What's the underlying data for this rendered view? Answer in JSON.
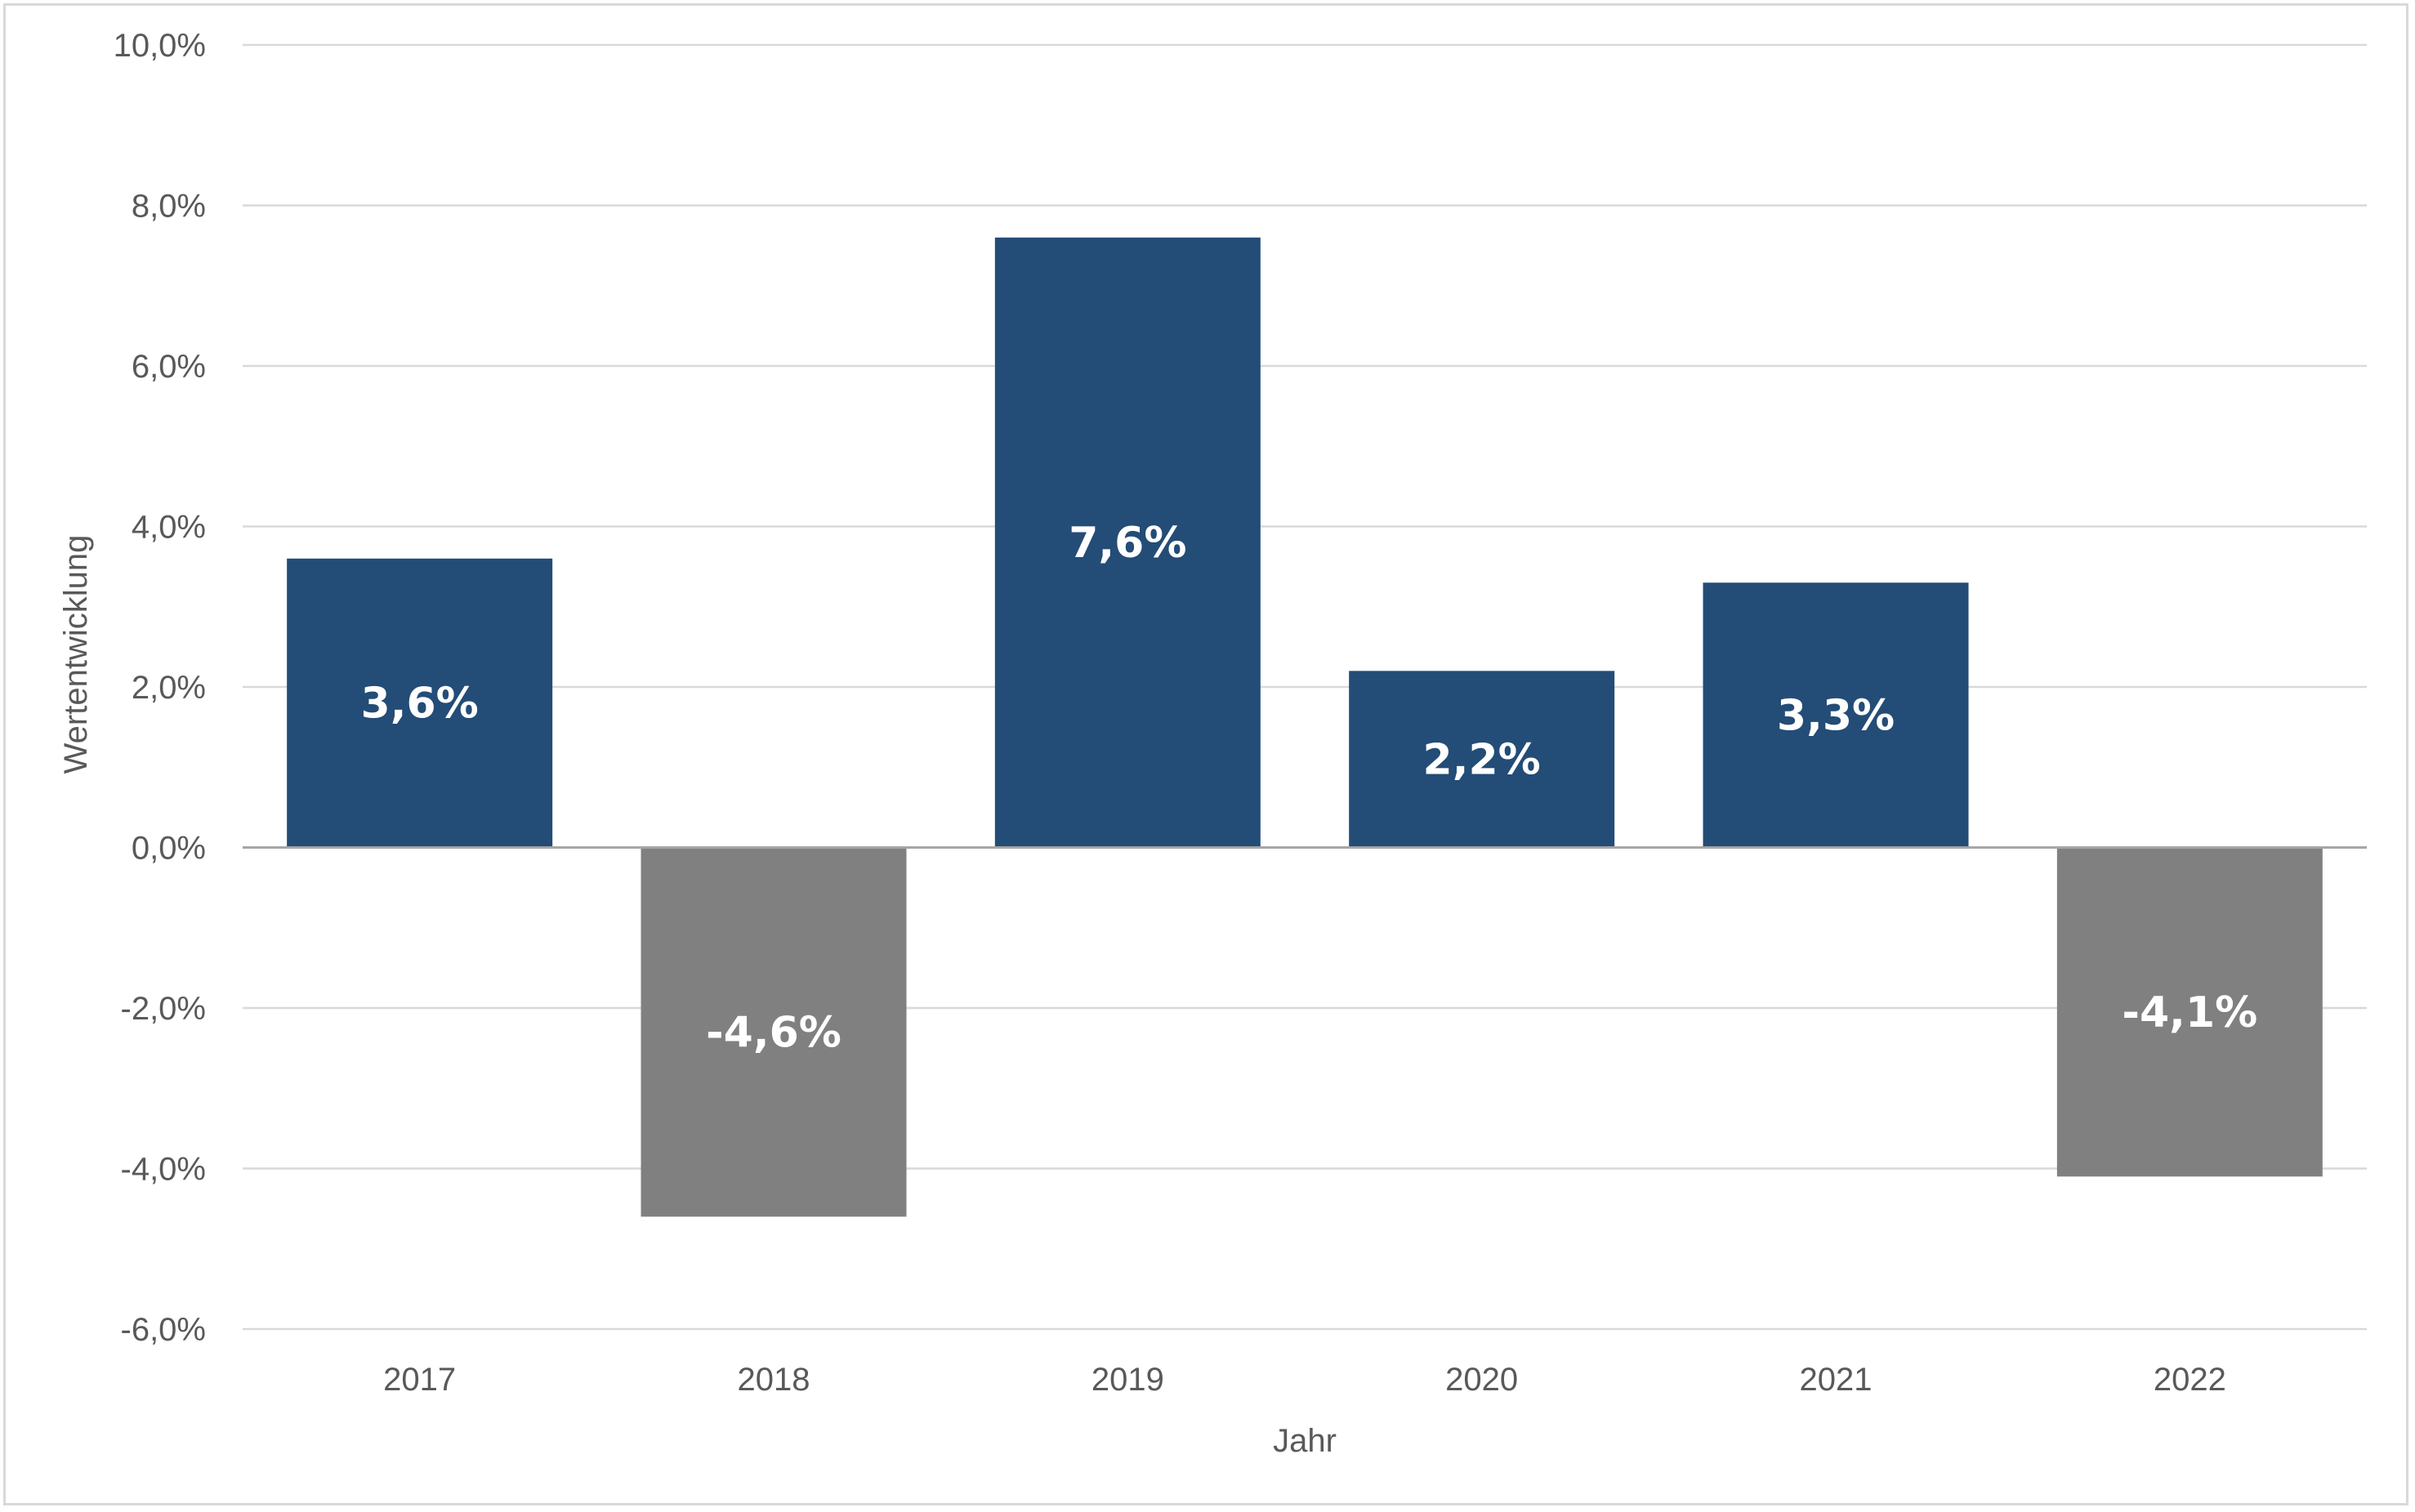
{
  "chart_data": {
    "type": "bar",
    "categories": [
      "2017",
      "2018",
      "2019",
      "2020",
      "2021",
      "2022"
    ],
    "values": [
      3.6,
      -4.6,
      7.6,
      2.2,
      3.3,
      -4.1
    ],
    "data_labels": [
      "3,6%",
      "-4,6%",
      "7,6%",
      "2,2%",
      "3,3%",
      "-4,1%"
    ],
    "xlabel": "Jahr",
    "ylabel": "Wertentwicklung",
    "ylim": [
      -6,
      10
    ],
    "y_ticks": [
      {
        "value": 10,
        "label": "10,0%"
      },
      {
        "value": 8,
        "label": "8,0%"
      },
      {
        "value": 6,
        "label": "6,0%"
      },
      {
        "value": 4,
        "label": "4,0%"
      },
      {
        "value": 2,
        "label": "2,0%"
      },
      {
        "value": 0,
        "label": "0,0%"
      },
      {
        "value": -2,
        "label": "-2,0%"
      },
      {
        "value": -4,
        "label": "-4,0%"
      },
      {
        "value": -6,
        "label": "-6,0%"
      }
    ],
    "grid": true,
    "legend": "none",
    "colors": {
      "positive": "#234c77",
      "negative": "#808080",
      "grid": "#d9d9d9",
      "zero_line": "#a6a6a6",
      "text": "#595959"
    }
  }
}
